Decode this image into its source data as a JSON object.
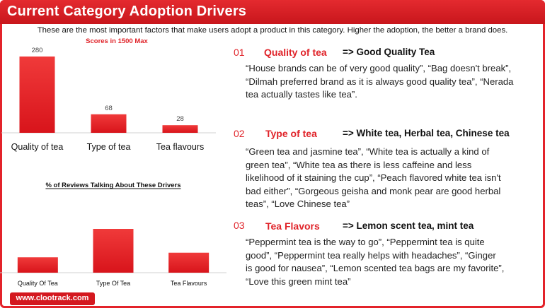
{
  "header": {
    "title": "Current Category Adoption Drivers",
    "subtitle": "These are the most important factors that make users adopt a product in this category. Higher the adoption, the better a brand does."
  },
  "chart_data": [
    {
      "type": "bar",
      "title": "Scores in 1500 Max",
      "categories": [
        "Quality of tea",
        "Type of tea",
        "Tea flavours"
      ],
      "values": [
        280,
        68,
        28
      ],
      "ylim": [
        0,
        280
      ],
      "grid": false,
      "bar_color": "#e8232a"
    },
    {
      "type": "bar",
      "title": "% of Reviews Talking About These Drivers",
      "categories": [
        "Quality Of Tea",
        "Type Of Tea",
        "Tea Flavours"
      ],
      "values": [
        20,
        57,
        26
      ],
      "ylim": [
        0,
        57
      ],
      "grid": false,
      "bar_color": "#e8232a"
    }
  ],
  "drivers": [
    {
      "number": "01",
      "name": "Quality of tea",
      "summary": "=> Good Quality Tea",
      "quote_lines": [
        "“House brands can be of very good quality”, “Bag doesn't break”,",
        "“Dilmah preferred brand as it is always good quality tea”, “Nerada",
        "tea actually tastes like tea”."
      ]
    },
    {
      "number": "02",
      "name": "Type of tea",
      "summary": "=> White tea, Herbal tea, Chinese tea",
      "quote_lines": [
        "“Green tea and jasmine tea”, “White tea is actually a kind of",
        "green tea”, “White tea as there is less caffeine and less",
        "likelihood of it staining the cup”, “Peach flavored white tea isn't",
        "bad either”, “Gorgeous geisha and monk pear are good herbal",
        "teas”, “Love Chinese tea”"
      ]
    },
    {
      "number": "03",
      "name": "Tea Flavors",
      "summary": "=> Lemon scent tea, mint tea",
      "quote_lines": [
        "“Peppermint tea is the way to go”, “Peppermint tea is quite",
        "good”, “Peppermint tea really helps with headaches”, “Ginger",
        "is good for nausea”, “Lemon scented tea bags are my favorite”,",
        "“Love this green mint tea”"
      ]
    }
  ],
  "footer": {
    "website": "www.clootrack.com"
  }
}
